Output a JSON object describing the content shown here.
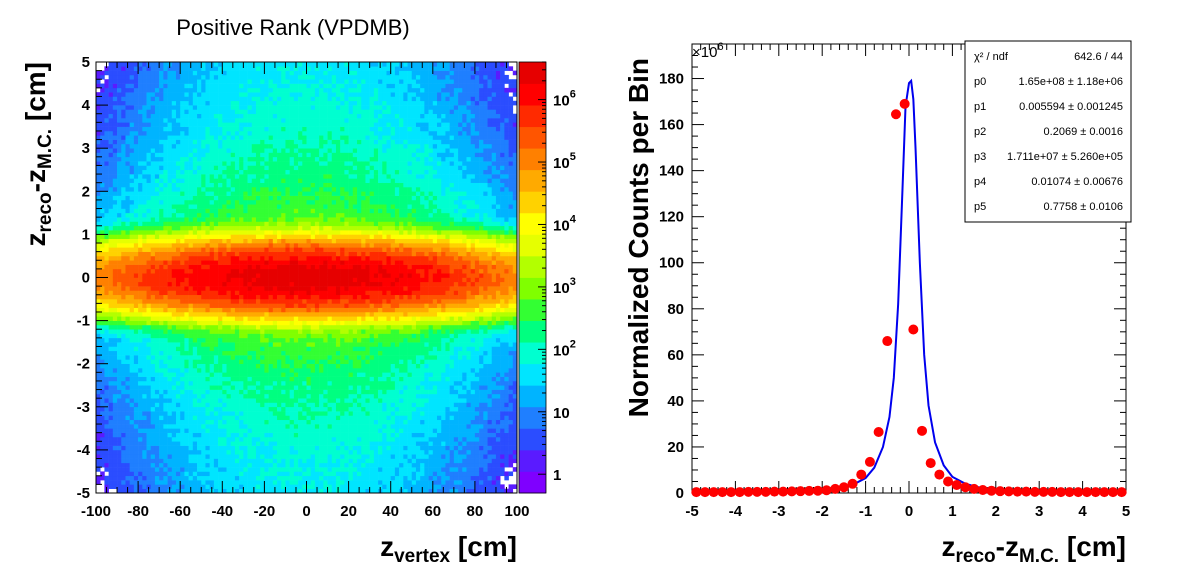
{
  "chart_data": [
    {
      "type": "heatmap",
      "title": "Positive Rank (VPDMB)",
      "xlabel_main": "z",
      "xlabel_sub": "vertex",
      "xlabel_unit": " [cm]",
      "ylabel_main1": "z",
      "ylabel_sub1": "reco",
      "ylabel_mid": "-z",
      "ylabel_sub2": "M.C.",
      "ylabel_unit": " [cm]",
      "xlim": [
        -100,
        100
      ],
      "ylim": [
        -5,
        5
      ],
      "x_ticks": [
        "-100",
        "-80",
        "-60",
        "-40",
        "-20",
        "0",
        "20",
        "40",
        "60",
        "80",
        "100"
      ],
      "y_ticks": [
        "-5",
        "-4",
        "-3",
        "-2",
        "-1",
        "0",
        "1",
        "2",
        "3",
        "4",
        "5"
      ],
      "z_scale": "log",
      "zlim": [
        0.5,
        4000000
      ],
      "z_ticks": [
        {
          "value": 1,
          "base": "1",
          "exp": ""
        },
        {
          "value": 10,
          "base": "10",
          "exp": ""
        },
        {
          "value": 100,
          "base": "10",
          "exp": "2"
        },
        {
          "value": 1000,
          "base": "10",
          "exp": "3"
        },
        {
          "value": 10000,
          "base": "10",
          "exp": "4"
        },
        {
          "value": 100000,
          "base": "10",
          "exp": "5"
        },
        {
          "value": 1000000,
          "base": "10",
          "exp": "6"
        }
      ],
      "palette": [
        "#7f00ff",
        "#5a1bff",
        "#2b4dff",
        "#1f7fff",
        "#00b4ff",
        "#00e5ff",
        "#00ffd0",
        "#00ff80",
        "#33ff33",
        "#80ff00",
        "#b3ff00",
        "#e6ff00",
        "#ffff00",
        "#ffd200",
        "#ffaa00",
        "#ff8000",
        "#ff5500",
        "#ff2a00",
        "#ff0000",
        "#e60000"
      ]
    },
    {
      "type": "scatter",
      "xlabel_main": "z",
      "xlabel_sub1": "reco",
      "xlabel_mid": "-z",
      "xlabel_sub2": "M.C.",
      "xlabel_unit": " [cm]",
      "ylabel": "Normalized Counts per Bin",
      "xlim": [
        -5,
        5
      ],
      "ylim": [
        0,
        195
      ],
      "y_multiplier": "×10",
      "y_multiplier_exp": "6",
      "x_ticks": [
        "-5",
        "-4",
        "-3",
        "-2",
        "-1",
        "0",
        "1",
        "2",
        "3",
        "4",
        "5"
      ],
      "y_ticks": [
        "0",
        "20",
        "40",
        "60",
        "80",
        "100",
        "120",
        "140",
        "160",
        "180"
      ],
      "points": {
        "x": [
          -4.9,
          -4.7,
          -4.5,
          -4.3,
          -4.1,
          -3.9,
          -3.7,
          -3.5,
          -3.3,
          -3.1,
          -2.9,
          -2.7,
          -2.5,
          -2.3,
          -2.1,
          -1.9,
          -1.7,
          -1.5,
          -1.3,
          -1.1,
          -0.9,
          -0.7,
          -0.5,
          -0.3,
          -0.1,
          0.1,
          0.3,
          0.5,
          0.7,
          0.9,
          1.1,
          1.3,
          1.5,
          1.7,
          1.9,
          2.1,
          2.3,
          2.5,
          2.7,
          2.9,
          3.1,
          3.3,
          3.5,
          3.7,
          3.9,
          4.1,
          4.3,
          4.5,
          4.7,
          4.9
        ],
        "y": [
          0.4,
          0.4,
          0.4,
          0.4,
          0.4,
          0.4,
          0.5,
          0.5,
          0.5,
          0.6,
          0.6,
          0.7,
          0.8,
          0.9,
          1.0,
          1.2,
          1.8,
          2.5,
          4.0,
          8.0,
          13.5,
          26.5,
          66,
          164.5,
          169,
          71,
          27,
          13,
          8,
          5,
          3.5,
          2.5,
          1.8,
          1.3,
          1.0,
          0.8,
          0.7,
          0.6,
          0.6,
          0.5,
          0.5,
          0.5,
          0.4,
          0.4,
          0.4,
          0.4,
          0.4,
          0.4,
          0.4,
          0.4
        ]
      },
      "fit": {
        "x": [
          -5.0,
          -4.0,
          -3.0,
          -2.5,
          -2.0,
          -1.6,
          -1.3,
          -1.0,
          -0.8,
          -0.6,
          -0.45,
          -0.35,
          -0.25,
          -0.15,
          -0.08,
          0.0,
          0.05,
          0.1,
          0.15,
          0.25,
          0.35,
          0.45,
          0.6,
          0.8,
          1.0,
          1.3,
          1.6,
          2.0,
          2.5,
          3.0,
          4.0,
          5.0
        ],
        "y": [
          0.3,
          0.4,
          0.6,
          0.8,
          1.2,
          2.0,
          3.5,
          6.5,
          11,
          20,
          33,
          50,
          82,
          132,
          168,
          178,
          179,
          171,
          150,
          100,
          60,
          38,
          22,
          12,
          7,
          4,
          2.5,
          1.3,
          0.8,
          0.6,
          0.4,
          0.3
        ]
      },
      "point_color": "#ff0000",
      "fit_color": "#0000ee",
      "stats": {
        "rows": [
          {
            "label": "χ² / ndf",
            "value": "642.6 / 44"
          },
          {
            "label": "p0",
            "value": "1.65e+08 ± 1.18e+06"
          },
          {
            "label": "p1",
            "value": "0.005594 ± 0.001245"
          },
          {
            "label": "p2",
            "value": "0.2069 ± 0.0016"
          },
          {
            "label": "p3",
            "value": "1.711e+07 ± 5.260e+05"
          },
          {
            "label": "p4",
            "value": "0.01074 ± 0.00676"
          },
          {
            "label": "p5",
            "value": "0.7758 ± 0.0106"
          }
        ]
      }
    }
  ]
}
